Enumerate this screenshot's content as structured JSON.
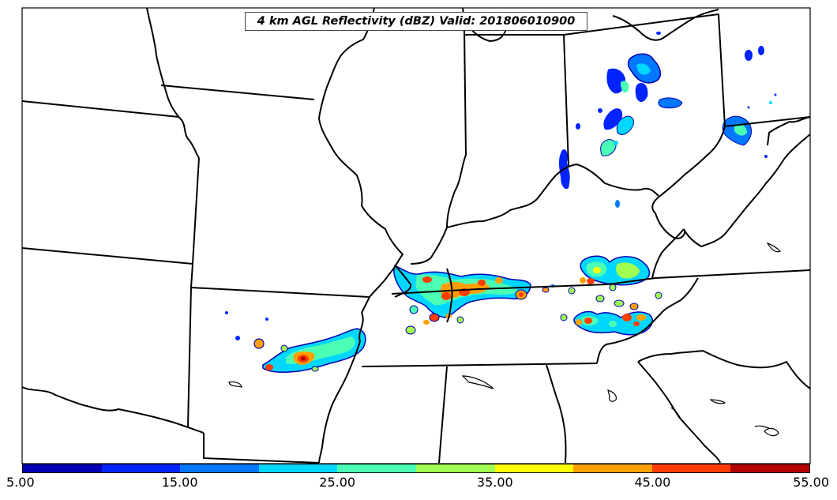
{
  "title": "4 km AGL Reflectivity (dBZ) Valid: 201806010900",
  "colorbar": {
    "colors": [
      "#0000b4",
      "#0023ff",
      "#0078ff",
      "#00d7ff",
      "#4bffb4",
      "#a0ff50",
      "#ffff00",
      "#ffa000",
      "#ff3c00",
      "#b40000"
    ],
    "tick_labels": [
      "5.00",
      "15.00",
      "25.00",
      "35.00",
      "45.00",
      "55.00"
    ],
    "tick_values": [
      5,
      15,
      25,
      35,
      45,
      55
    ],
    "range": [
      5,
      55
    ]
  },
  "map": {
    "variable": "reflectivity",
    "units": "dBZ",
    "level_km_agl": 4
  }
}
